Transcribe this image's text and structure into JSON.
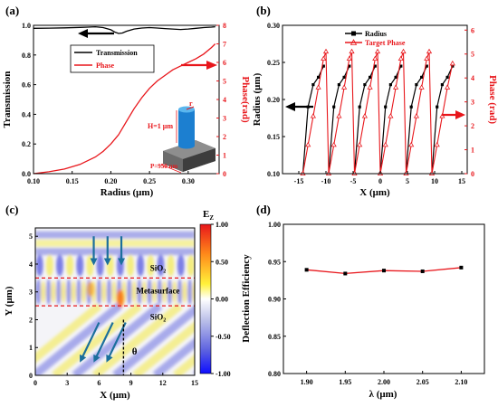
{
  "chart_data": [
    {
      "panel": "(a)",
      "type": "line",
      "xlabel": "Radius (μm)",
      "ylabel": "Transmission",
      "y2label": "Phase(rad)",
      "xlim": [
        0.1,
        0.34
      ],
      "ylim": [
        0,
        1.0
      ],
      "y2lim": [
        0,
        8
      ],
      "xticks": [
        "0.10",
        "0.15",
        "0.20",
        "0.25",
        "0.30"
      ],
      "yticks": [
        "0.0",
        "0.2",
        "0.4",
        "0.6",
        "0.8",
        "1.0"
      ],
      "y2ticks": [
        "0",
        "1",
        "2",
        "3",
        "4",
        "5",
        "6",
        "7",
        "8"
      ],
      "legend_position": "upper-right",
      "series": [
        {
          "name": "Transmission",
          "color": "#000000",
          "axis": "left",
          "x": [
            0.1,
            0.12,
            0.14,
            0.16,
            0.17,
            0.18,
            0.19,
            0.2,
            0.205,
            0.21,
            0.215,
            0.22,
            0.23,
            0.24,
            0.25,
            0.26,
            0.27,
            0.28,
            0.29,
            0.3,
            0.31,
            0.32,
            0.33,
            0.335
          ],
          "values": [
            0.98,
            0.981,
            0.983,
            0.986,
            0.988,
            0.99,
            0.985,
            0.97,
            0.955,
            0.945,
            0.948,
            0.96,
            0.975,
            0.982,
            0.985,
            0.982,
            0.978,
            0.975,
            0.972,
            0.975,
            0.98,
            0.985,
            0.988,
            0.99
          ]
        },
        {
          "name": "Phase",
          "color": "#e8161b",
          "axis": "right",
          "x": [
            0.1,
            0.12,
            0.14,
            0.16,
            0.18,
            0.19,
            0.2,
            0.21,
            0.22,
            0.23,
            0.24,
            0.25,
            0.26,
            0.27,
            0.28,
            0.29,
            0.3,
            0.31,
            0.32,
            0.33,
            0.335
          ],
          "values": [
            0,
            0.1,
            0.25,
            0.5,
            0.9,
            1.2,
            1.6,
            2.1,
            2.8,
            3.5,
            4.1,
            4.6,
            5.0,
            5.3,
            5.6,
            5.8,
            6.0,
            6.2,
            6.45,
            6.8,
            7.0
          ]
        }
      ],
      "inset_labels": [
        "r",
        "H=1 μm",
        "P=950 nm"
      ]
    },
    {
      "panel": "(b)",
      "type": "line",
      "xlabel": "X (μm)",
      "ylabel": "Radius (μm)",
      "y2label": "Phase (rad)",
      "xlim": [
        -18,
        16
      ],
      "ylim": [
        0.1,
        0.3
      ],
      "y2lim": [
        0,
        6.2
      ],
      "xticks": [
        "-15",
        "-10",
        "-5",
        "0",
        "5",
        "10",
        "15"
      ],
      "yticks": [
        "0.10",
        "0.15",
        "0.20",
        "0.25",
        "0.30"
      ],
      "y2ticks": [
        "0",
        "1",
        "2",
        "3",
        "4",
        "5",
        "6"
      ],
      "legend_position": "top",
      "series": [
        {
          "name": "Radius",
          "color": "#000000",
          "axis": "left",
          "x": [
            -14.25,
            -13.3,
            -12.35,
            -11.4,
            -10.45,
            -9.5,
            -8.55,
            -7.6,
            -6.65,
            -5.7,
            -4.75,
            -3.8,
            -2.85,
            -1.9,
            -0.95,
            0.0,
            0.95,
            1.9,
            2.85,
            3.8,
            4.75,
            5.7,
            6.65,
            7.6,
            8.55,
            9.5,
            10.45,
            11.4,
            12.35,
            13.3
          ],
          "values": [
            0.1,
            0.19,
            0.22,
            0.23,
            0.245,
            0.1,
            0.19,
            0.22,
            0.23,
            0.245,
            0.1,
            0.19,
            0.22,
            0.23,
            0.245,
            0.1,
            0.19,
            0.22,
            0.23,
            0.245,
            0.1,
            0.19,
            0.22,
            0.23,
            0.245,
            0.1,
            0.19,
            0.22,
            0.23,
            0.245
          ]
        },
        {
          "name": "Target Phase",
          "color": "#e8161b",
          "axis": "right",
          "x": [
            -14.25,
            -13.3,
            -12.35,
            -11.4,
            -10.45,
            -10.0,
            -9.5,
            -8.55,
            -7.6,
            -6.65,
            -5.7,
            -5.25,
            -4.75,
            -3.8,
            -2.85,
            -1.9,
            -0.95,
            -0.5,
            0.0,
            0.95,
            1.9,
            2.85,
            3.8,
            4.25,
            4.75,
            5.7,
            6.65,
            7.6,
            8.55,
            9.0,
            9.5,
            10.45,
            11.4,
            12.35,
            13.3
          ],
          "values": [
            0.0,
            1.2,
            2.4,
            3.6,
            4.8,
            5.1,
            0.0,
            1.2,
            2.4,
            3.6,
            4.8,
            5.1,
            0.0,
            1.2,
            2.4,
            3.6,
            4.8,
            5.1,
            0.0,
            1.2,
            2.4,
            3.6,
            4.8,
            5.1,
            0.0,
            1.2,
            2.4,
            3.6,
            4.8,
            5.1,
            0.0,
            1.2,
            2.4,
            3.6,
            4.6
          ]
        }
      ]
    },
    {
      "panel": "(c)",
      "type": "heatmap",
      "xlabel": "X (μm)",
      "ylabel": "Y (μm)",
      "xlim": [
        0,
        15
      ],
      "ylim": [
        0,
        5.3
      ],
      "xticks": [
        "0",
        "3",
        "6",
        "9",
        "12",
        "15"
      ],
      "yticks": [
        "0",
        "1",
        "2",
        "3",
        "4",
        "5"
      ],
      "colorbar_title": "E",
      "colorbar_title_sub": "Z",
      "colorbar_range": [
        -1.0,
        1.0
      ],
      "colorbar_ticks": [
        "1.00",
        "0.50",
        "0.00",
        "-0.50",
        "-1.00"
      ],
      "boundaries_y": [
        3.5,
        2.5
      ],
      "region_labels": [
        {
          "text": "SiO",
          "sub": "2"
        },
        {
          "text": "Metasurface",
          "sub": ""
        },
        {
          "text": "SiO",
          "sub": "2"
        }
      ],
      "angle_label": "θ"
    },
    {
      "panel": "(d)",
      "type": "line",
      "xlabel": "λ (μm)",
      "ylabel": "Deflection Efficiency",
      "xlim": [
        1.87,
        2.13
      ],
      "ylim": [
        0.8,
        1.0
      ],
      "xticks": [
        "1.90",
        "1.95",
        "2.00",
        "2.05",
        "2.10"
      ],
      "yticks": [
        "0.80",
        "0.85",
        "0.90",
        "0.95",
        "1.00"
      ],
      "series": [
        {
          "color": "#e8161b",
          "marker_color": "#000000",
          "x": [
            1.9,
            1.95,
            2.0,
            2.05,
            2.1
          ],
          "values": [
            0.939,
            0.934,
            0.938,
            0.937,
            0.942
          ]
        }
      ]
    }
  ]
}
